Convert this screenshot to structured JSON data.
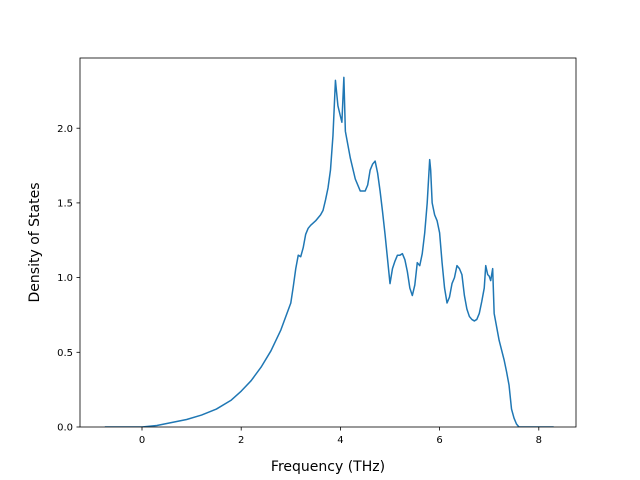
{
  "chart_data": {
    "type": "line",
    "xlabel": "Frequency (THz)",
    "ylabel": "Density of States",
    "xlim": [
      -1.25,
      8.75
    ],
    "ylim": [
      0.0,
      2.47
    ],
    "xticks": [
      0,
      2,
      4,
      6,
      8
    ],
    "xtick_labels": [
      "0",
      "2",
      "4",
      "6",
      "8"
    ],
    "yticks": [
      0.0,
      0.5,
      1.0,
      1.5,
      2.0
    ],
    "ytick_labels": [
      "0.0",
      "0.5",
      "1.0",
      "1.5",
      "2.0"
    ],
    "grid": false,
    "line_color": "#1f77b4",
    "series": [
      {
        "x": [
          -0.75,
          0.0,
          0.3,
          0.6,
          0.9,
          1.2,
          1.5,
          1.8,
          2.0,
          2.2,
          2.4,
          2.6,
          2.8,
          3.0,
          3.05,
          3.1,
          3.15,
          3.2,
          3.25,
          3.3,
          3.35,
          3.4,
          3.5,
          3.6,
          3.65,
          3.7,
          3.75,
          3.8,
          3.85,
          3.9,
          3.95,
          4.0,
          4.03,
          4.07,
          4.1,
          4.2,
          4.3,
          4.4,
          4.5,
          4.55,
          4.6,
          4.65,
          4.7,
          4.75,
          4.8,
          4.85,
          4.9,
          5.0,
          5.05,
          5.1,
          5.15,
          5.2,
          5.25,
          5.3,
          5.35,
          5.4,
          5.45,
          5.5,
          5.55,
          5.6,
          5.65,
          5.7,
          5.75,
          5.8,
          5.82,
          5.85,
          5.9,
          5.95,
          6.0,
          6.05,
          6.1,
          6.15,
          6.2,
          6.25,
          6.3,
          6.35,
          6.4,
          6.45,
          6.5,
          6.55,
          6.6,
          6.65,
          6.7,
          6.75,
          6.8,
          6.85,
          6.9,
          6.93,
          6.97,
          7.0,
          7.03,
          7.07,
          7.1,
          7.2,
          7.3,
          7.35,
          7.4,
          7.45,
          7.5,
          7.55,
          7.6,
          7.7,
          8.0,
          8.3
        ],
        "y": [
          0.0,
          0.0,
          0.01,
          0.03,
          0.05,
          0.08,
          0.12,
          0.18,
          0.24,
          0.31,
          0.4,
          0.51,
          0.65,
          0.83,
          0.94,
          1.06,
          1.15,
          1.14,
          1.2,
          1.29,
          1.33,
          1.35,
          1.38,
          1.42,
          1.45,
          1.52,
          1.6,
          1.72,
          1.95,
          2.32,
          2.15,
          2.08,
          2.04,
          2.34,
          1.98,
          1.8,
          1.66,
          1.58,
          1.58,
          1.62,
          1.72,
          1.76,
          1.78,
          1.7,
          1.58,
          1.44,
          1.29,
          0.96,
          1.06,
          1.11,
          1.15,
          1.15,
          1.16,
          1.12,
          1.04,
          0.93,
          0.88,
          0.95,
          1.1,
          1.08,
          1.16,
          1.3,
          1.5,
          1.79,
          1.72,
          1.5,
          1.42,
          1.38,
          1.3,
          1.1,
          0.93,
          0.83,
          0.87,
          0.96,
          1.0,
          1.08,
          1.06,
          1.02,
          0.88,
          0.79,
          0.74,
          0.72,
          0.71,
          0.72,
          0.76,
          0.84,
          0.93,
          1.08,
          1.02,
          1.01,
          0.98,
          1.06,
          0.76,
          0.58,
          0.45,
          0.37,
          0.28,
          0.12,
          0.06,
          0.02,
          0.0,
          0.0,
          0.0,
          0.0
        ]
      }
    ]
  }
}
